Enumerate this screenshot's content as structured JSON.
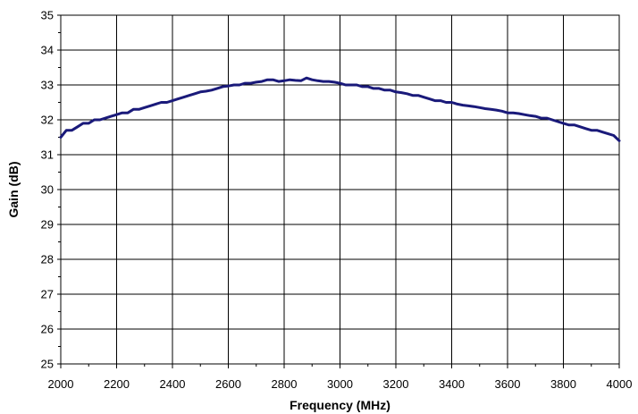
{
  "chart_data": {
    "type": "line",
    "title": "",
    "xlabel": "Frequency (MHz)",
    "ylabel": "Gain (dB)",
    "xlim": [
      2000,
      4000
    ],
    "ylim": [
      25,
      35
    ],
    "x_ticks": [
      2000,
      2200,
      2400,
      2600,
      2800,
      3000,
      3200,
      3400,
      3600,
      3800,
      4000
    ],
    "y_ticks": [
      25,
      26,
      27,
      28,
      29,
      30,
      31,
      32,
      33,
      34,
      35
    ],
    "x_tick_labels": [
      "2000",
      "2200",
      "2400",
      "2600",
      "2800",
      "3000",
      "3200",
      "3400",
      "3600",
      "3800",
      "4000"
    ],
    "y_tick_labels": [
      "25",
      "26",
      "27",
      "28",
      "29",
      "30",
      "31",
      "32",
      "33",
      "34",
      "35"
    ],
    "grid": true,
    "legend": "none",
    "series_color": "#1a1a7a",
    "series": [
      {
        "x": [
          2000,
          2020,
          2040,
          2060,
          2080,
          2100,
          2120,
          2140,
          2160,
          2180,
          2200,
          2220,
          2240,
          2260,
          2280,
          2300,
          2320,
          2340,
          2360,
          2380,
          2400,
          2420,
          2440,
          2460,
          2480,
          2500,
          2520,
          2540,
          2560,
          2580,
          2600,
          2620,
          2640,
          2660,
          2680,
          2700,
          2720,
          2740,
          2760,
          2780,
          2800,
          2820,
          2840,
          2860,
          2880,
          2900,
          2920,
          2940,
          2960,
          2980,
          3000,
          3020,
          3040,
          3060,
          3080,
          3100,
          3120,
          3140,
          3160,
          3180,
          3200,
          3220,
          3240,
          3260,
          3280,
          3300,
          3320,
          3340,
          3360,
          3380,
          3400,
          3420,
          3440,
          3460,
          3480,
          3500,
          3520,
          3540,
          3560,
          3580,
          3600,
          3620,
          3640,
          3660,
          3680,
          3700,
          3720,
          3740,
          3760,
          3780,
          3800,
          3820,
          3840,
          3860,
          3880,
          3900,
          3920,
          3940,
          3960,
          3980,
          4000
        ],
        "y": [
          31.5,
          31.7,
          31.7,
          31.8,
          31.9,
          31.9,
          32.0,
          32.0,
          32.05,
          32.1,
          32.15,
          32.2,
          32.2,
          32.3,
          32.3,
          32.35,
          32.4,
          32.45,
          32.5,
          32.5,
          32.55,
          32.6,
          32.65,
          32.7,
          32.75,
          32.8,
          32.82,
          32.85,
          32.9,
          32.95,
          32.97,
          33.0,
          33.0,
          33.05,
          33.05,
          33.08,
          33.1,
          33.15,
          33.15,
          33.1,
          33.12,
          33.15,
          33.13,
          33.12,
          33.2,
          33.15,
          33.12,
          33.1,
          33.1,
          33.08,
          33.05,
          33.0,
          33.0,
          33.0,
          32.95,
          32.95,
          32.9,
          32.9,
          32.85,
          32.85,
          32.8,
          32.78,
          32.75,
          32.7,
          32.7,
          32.65,
          32.6,
          32.55,
          32.55,
          32.5,
          32.5,
          32.45,
          32.42,
          32.4,
          32.38,
          32.35,
          32.32,
          32.3,
          32.28,
          32.25,
          32.2,
          32.2,
          32.18,
          32.15,
          32.12,
          32.1,
          32.05,
          32.05,
          32.0,
          31.95,
          31.9,
          31.85,
          31.85,
          31.8,
          31.75,
          31.7,
          31.7,
          31.65,
          31.6,
          31.55,
          31.4
        ]
      }
    ]
  }
}
